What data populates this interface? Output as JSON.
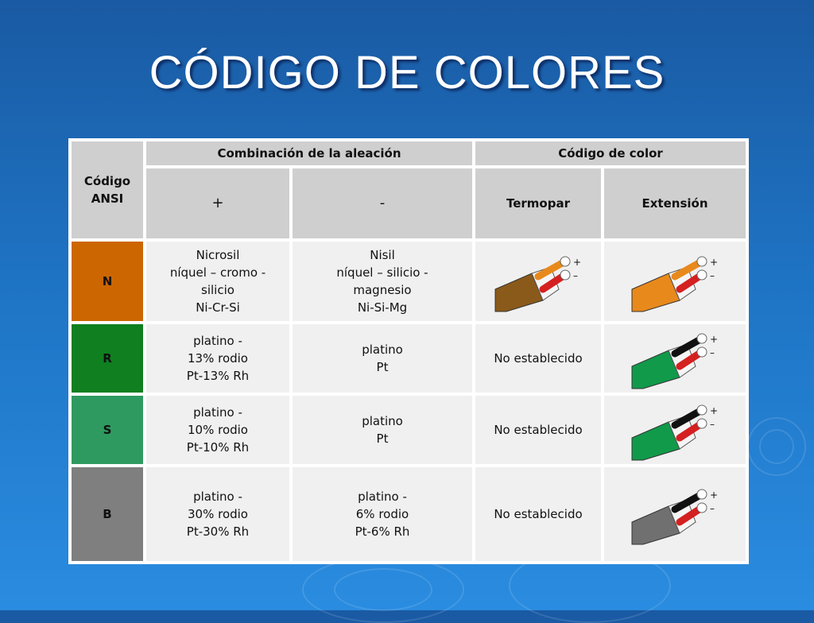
{
  "title": "CÓDIGO DE COLORES",
  "table": {
    "header": {
      "code_ansi": "Código ANSI",
      "alloy_group": "Combinación de la aleación",
      "color_group": "Código de color",
      "plus": "+",
      "minus": "-",
      "thermocouple": "Termopar",
      "extension": "Extensión"
    },
    "rows": [
      {
        "code": "N",
        "code_color": "#cc6600",
        "plus_lines": [
          "Nicrosil",
          "níquel – cromo -",
          "silicio",
          "Ni-Cr-Si"
        ],
        "minus_lines": [
          "Nisil",
          "níquel – silicio -",
          "magnesio",
          "Ni-Si-Mg"
        ],
        "thermocouple_text": "",
        "thermocouple_icon": "wire-brown-jacket",
        "extension_icon": "wire-orange-jacket"
      },
      {
        "code": "R",
        "code_color": "#0f7f1f",
        "plus_lines": [
          "platino -",
          "13% rodio",
          "Pt-13% Rh"
        ],
        "minus_lines": [
          "platino",
          "Pt"
        ],
        "thermocouple_text": "No establecido",
        "extension_icon": "wire-green-jacket"
      },
      {
        "code": "S",
        "code_color": "#2f9a5f",
        "plus_lines": [
          "platino -",
          "10% rodio",
          "Pt-10% Rh"
        ],
        "minus_lines": [
          "platino",
          "Pt"
        ],
        "thermocouple_text": "No establecido",
        "extension_icon": "wire-green-jacket"
      },
      {
        "code": "B",
        "code_color": "#7f7f7f",
        "plus_lines": [
          "platino -",
          "30% rodio",
          "Pt-30% Rh"
        ],
        "minus_lines": [
          "platino -",
          "6% rodio",
          "Pt-6% Rh"
        ],
        "thermocouple_text": "No establecido",
        "extension_icon": "wire-gray-jacket"
      }
    ],
    "wire_labels": {
      "plus": "+",
      "minus": "–"
    }
  }
}
